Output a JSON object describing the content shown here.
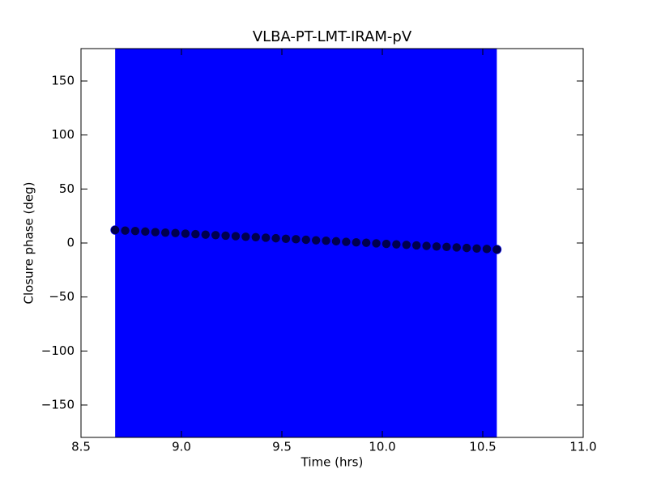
{
  "chart_data": {
    "type": "errorbar",
    "title": "VLBA-PT-LMT-IRAM-pV",
    "xlabel": "Time (hrs)",
    "ylabel": "Closure phase (deg)",
    "xlim": [
      8.5,
      11.0
    ],
    "ylim": [
      -180,
      180
    ],
    "xticks": [
      8.5,
      {
        "value": 9,
        "label": "9.0"
      },
      9.5,
      {
        "value": 10,
        "label": "10.0"
      },
      10.5,
      {
        "value": 11,
        "label": "11.0"
      }
    ],
    "yticks": [
      {
        "value": -150,
        "label": "−150"
      },
      {
        "value": -100,
        "label": "−100"
      },
      {
        "value": -50,
        "label": "−50"
      },
      0,
      50,
      100,
      150
    ],
    "grid": false,
    "series": [
      {
        "color": "#0000ff",
        "marker_color": "#00004d",
        "x": [
          8.67,
          8.72,
          8.77,
          8.82,
          8.87,
          8.92,
          8.97,
          9.02,
          9.07,
          9.12,
          9.17,
          9.22,
          9.27,
          9.32,
          9.37,
          9.42,
          9.47,
          9.52,
          9.57,
          9.62,
          9.67,
          9.72,
          9.77,
          9.82,
          9.87,
          9.92,
          9.97,
          10.02,
          10.07,
          10.12,
          10.17,
          10.22,
          10.27,
          10.32,
          10.37,
          10.42,
          10.47,
          10.52,
          10.57
        ],
        "values": [
          12.0,
          11.5,
          11.1,
          10.6,
          10.1,
          9.6,
          9.2,
          8.7,
          8.2,
          7.7,
          7.3,
          6.8,
          6.3,
          5.8,
          5.4,
          4.9,
          4.4,
          3.9,
          3.5,
          3.0,
          2.5,
          2.1,
          1.6,
          1.1,
          0.6,
          0.2,
          -0.3,
          -0.8,
          -1.3,
          -1.7,
          -2.2,
          -2.7,
          -3.2,
          -3.6,
          -4.1,
          -4.6,
          -5.1,
          -5.5,
          -6.0
        ],
        "error": 200
      }
    ]
  }
}
